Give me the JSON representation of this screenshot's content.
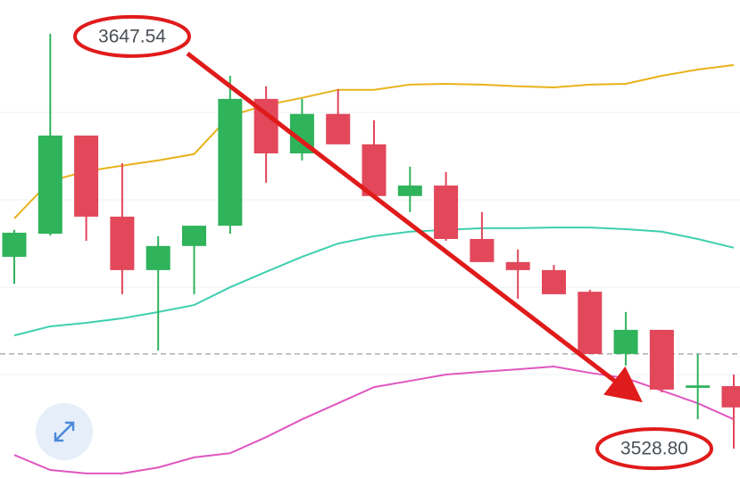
{
  "chart_data": {
    "type": "candlestick",
    "categories": [
      null,
      null,
      null,
      null,
      null,
      null,
      null,
      null,
      null,
      null,
      null,
      null,
      null,
      null,
      null,
      null,
      null,
      null,
      null,
      null,
      null
    ],
    "open": [
      3583.7,
      3590.3,
      3618.4,
      3595.2,
      3579.9,
      3586.8,
      3592.6,
      3628.9,
      3613.3,
      3624.6,
      3615.9,
      3601.1,
      3604.1,
      3588.8,
      3582.2,
      3579.9,
      3573.7,
      3555.9,
      3562.8,
      3546.2,
      3546.7
    ],
    "high": [
      3591.4,
      3647.54,
      3618.4,
      3610.5,
      3589.6,
      3592.6,
      3635.5,
      3632.5,
      3628.9,
      3631.7,
      3622.8,
      3609.5,
      3608.0,
      3596.5,
      3585.8,
      3581.4,
      3574.3,
      3567.9,
      3562.8,
      3555.9,
      3550.0
    ],
    "low": [
      3576.0,
      3589.8,
      3588.3,
      3573.0,
      3556.9,
      3573.0,
      3590.3,
      3604.9,
      3611.3,
      3615.9,
      3601.1,
      3596.5,
      3588.3,
      3582.2,
      3571.7,
      3573.0,
      3555.9,
      3552.6,
      3544.9,
      3537.2,
      3528.8
    ],
    "close": [
      3590.6,
      3618.4,
      3595.2,
      3579.9,
      3586.8,
      3592.6,
      3628.9,
      3613.3,
      3624.6,
      3615.9,
      3601.1,
      3604.1,
      3588.8,
      3582.2,
      3579.9,
      3573.0,
      3555.9,
      3562.8,
      3545.7,
      3546.9,
      3540.6
    ],
    "up_color": "#2fb35b",
    "down_color": "#e2475a",
    "bands": [
      {
        "color": "#e8b21a",
        "values": [
          3594.7,
          3605.4,
          3608.2,
          3609.8,
          3611.3,
          3613.1,
          3624.1,
          3627.1,
          3629.2,
          3631.5,
          3631.5,
          3633.0,
          3633.2,
          3633.0,
          3632.5,
          3632.2,
          3633.0,
          3633.2,
          3635.5,
          3637.3,
          3638.6
        ]
      },
      {
        "color": "#3fcfb0",
        "values": [
          3561.2,
          3563.8,
          3564.8,
          3566.1,
          3567.9,
          3569.9,
          3575.0,
          3579.4,
          3583.7,
          3587.5,
          3589.6,
          3590.9,
          3591.4,
          3591.9,
          3591.9,
          3592.1,
          3592.1,
          3591.6,
          3590.9,
          3588.8,
          3586.3
        ]
      },
      {
        "color": "#e056c0",
        "values": [
          3527.0,
          3522.7,
          3521.7,
          3521.7,
          3523.4,
          3526.3,
          3527.5,
          3532.1,
          3537.2,
          3541.8,
          3546.4,
          3548.2,
          3550.0,
          3550.8,
          3551.5,
          3552.3,
          3550.5,
          3549.0,
          3545.4,
          3541.8,
          3537.2
        ]
      }
    ],
    "price_line": 3555.9,
    "gridlines": [
      3550,
      3575,
      3600,
      3625
    ],
    "ylim": [
      3520.4,
      3657.2
    ],
    "annotations": [
      {
        "value": 3647.54,
        "label": "3647.54"
      },
      {
        "value": 3528.8,
        "label": "3528.80"
      }
    ]
  }
}
